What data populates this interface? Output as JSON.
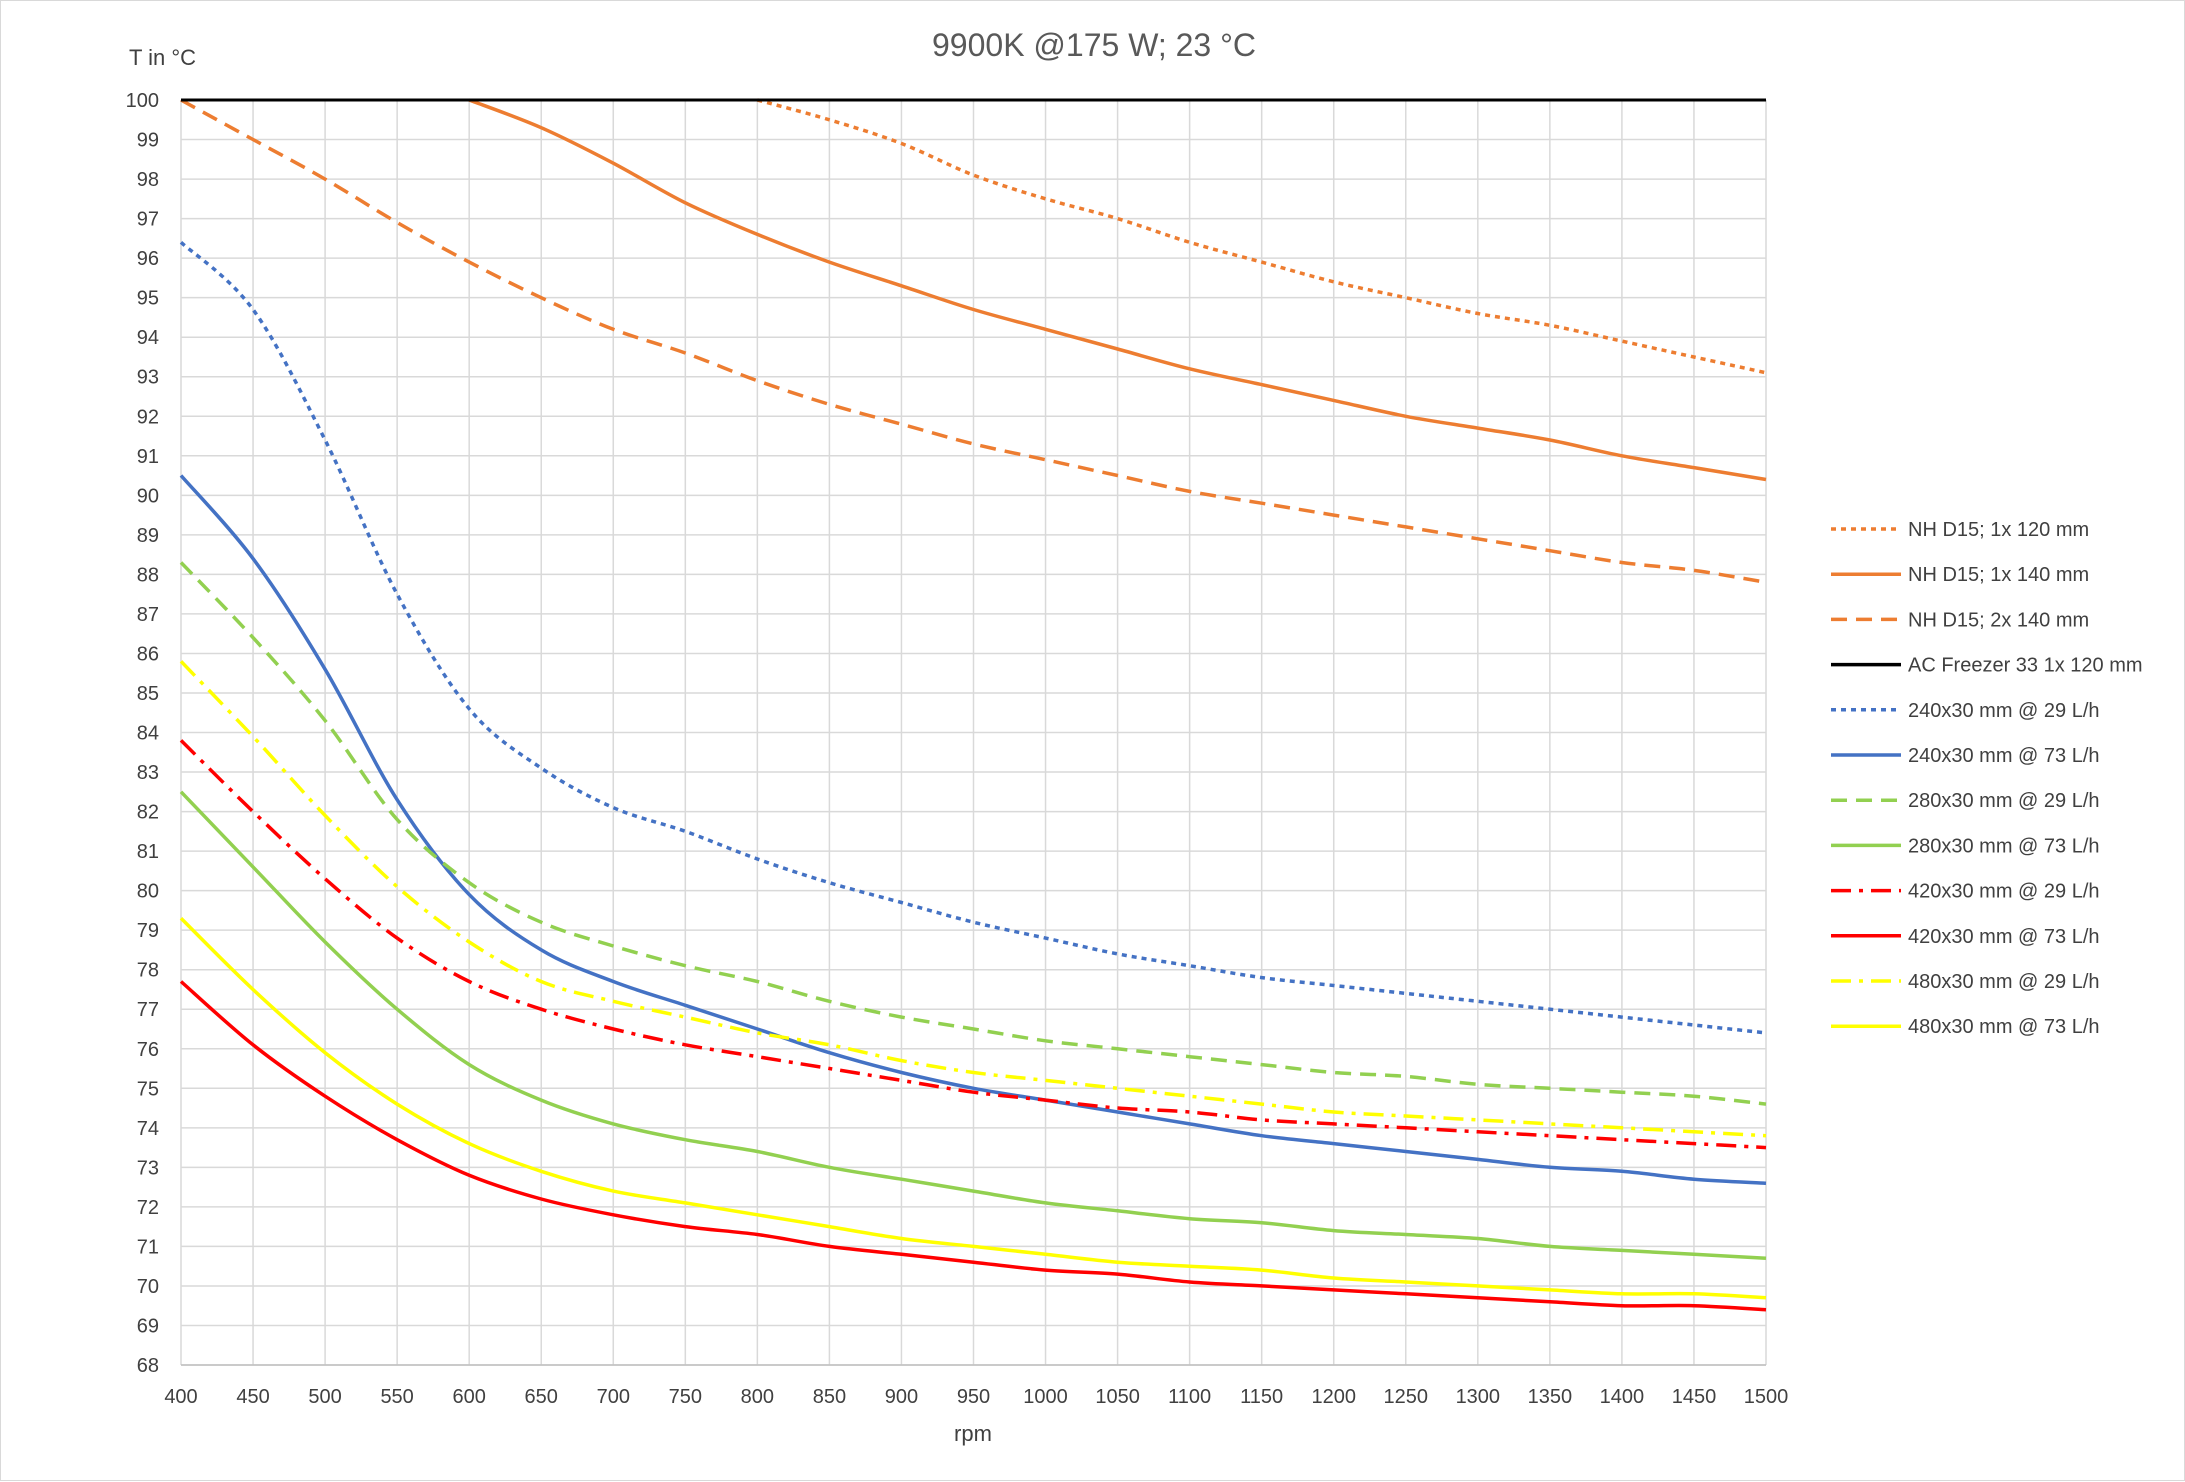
{
  "chart_data": {
    "type": "line",
    "title": "9900K @175 W; 23 °C",
    "xlabel": "rpm",
    "ylabel": "T in °C",
    "xlim": [
      400,
      1500
    ],
    "ylim": [
      68,
      100
    ],
    "x_ticks": [
      400,
      450,
      500,
      550,
      600,
      650,
      700,
      750,
      800,
      850,
      900,
      950,
      1000,
      1050,
      1100,
      1150,
      1200,
      1250,
      1300,
      1350,
      1400,
      1450,
      1500
    ],
    "y_ticks": [
      68,
      69,
      70,
      71,
      72,
      73,
      74,
      75,
      76,
      77,
      78,
      79,
      80,
      81,
      82,
      83,
      84,
      85,
      86,
      87,
      88,
      89,
      90,
      91,
      92,
      93,
      94,
      95,
      96,
      97,
      98,
      99,
      100
    ],
    "grid": true,
    "legend_position": "right",
    "x": [
      400,
      450,
      500,
      550,
      600,
      650,
      700,
      750,
      800,
      850,
      900,
      950,
      1000,
      1050,
      1100,
      1150,
      1200,
      1250,
      1300,
      1350,
      1400,
      1450,
      1500
    ],
    "series": [
      {
        "name": "NH D15; 1x 120 mm",
        "color": "#ED7D31",
        "dash": "dotted",
        "values": [
          null,
          null,
          null,
          null,
          null,
          null,
          null,
          null,
          100,
          99.5,
          98.9,
          98.1,
          97.5,
          97.0,
          96.4,
          95.9,
          95.4,
          95.0,
          94.6,
          94.3,
          93.9,
          93.5,
          93.1
        ]
      },
      {
        "name": "NH D15; 1x 140 mm",
        "color": "#ED7D31",
        "dash": "solid",
        "values": [
          null,
          null,
          null,
          null,
          100,
          99.3,
          98.4,
          97.4,
          96.6,
          95.9,
          95.3,
          94.7,
          94.2,
          93.7,
          93.2,
          92.8,
          92.4,
          92.0,
          91.7,
          91.4,
          91.0,
          90.7,
          90.4
        ]
      },
      {
        "name": "NH D15; 2x 140 mm",
        "color": "#ED7D31",
        "dash": "dashed",
        "values": [
          100,
          99.0,
          98.0,
          96.9,
          95.9,
          95.0,
          94.2,
          93.6,
          92.9,
          92.3,
          91.8,
          91.3,
          90.9,
          90.5,
          90.1,
          89.8,
          89.5,
          89.2,
          88.9,
          88.6,
          88.3,
          88.1,
          87.8
        ]
      },
      {
        "name": "AC Freezer 33 1x 120 mm",
        "color": "#000000",
        "dash": "solid",
        "values": [
          100,
          100,
          100,
          100,
          100,
          100,
          100,
          100,
          100,
          100,
          100,
          100,
          100,
          100,
          100,
          100,
          100,
          100,
          100,
          100,
          100,
          100,
          100
        ]
      },
      {
        "name": "240x30 mm @ 29 L/h",
        "color": "#4472C4",
        "dash": "dotted",
        "values": [
          96.4,
          94.7,
          91.4,
          87.5,
          84.6,
          83.1,
          82.1,
          81.5,
          80.8,
          80.2,
          79.7,
          79.2,
          78.8,
          78.4,
          78.1,
          77.8,
          77.6,
          77.4,
          77.2,
          77.0,
          76.8,
          76.6,
          76.4
        ]
      },
      {
        "name": "240x30 mm @ 73 L/h",
        "color": "#4472C4",
        "dash": "solid",
        "values": [
          90.5,
          88.4,
          85.6,
          82.3,
          79.9,
          78.5,
          77.7,
          77.1,
          76.5,
          75.9,
          75.4,
          75.0,
          74.7,
          74.4,
          74.1,
          73.8,
          73.6,
          73.4,
          73.2,
          73.0,
          72.9,
          72.7,
          72.6
        ]
      },
      {
        "name": "280x30 mm @ 29 L/h",
        "color": "#92D050",
        "dash": "dashed",
        "values": [
          88.3,
          86.4,
          84.3,
          81.8,
          80.2,
          79.2,
          78.6,
          78.1,
          77.7,
          77.2,
          76.8,
          76.5,
          76.2,
          76.0,
          75.8,
          75.6,
          75.4,
          75.3,
          75.1,
          75.0,
          74.9,
          74.8,
          74.6
        ]
      },
      {
        "name": "280x30 mm @ 73 L/h",
        "color": "#92D050",
        "dash": "solid",
        "values": [
          82.5,
          80.6,
          78.7,
          77.0,
          75.6,
          74.7,
          74.1,
          73.7,
          73.4,
          73.0,
          72.7,
          72.4,
          72.1,
          71.9,
          71.7,
          71.6,
          71.4,
          71.3,
          71.2,
          71.0,
          70.9,
          70.8,
          70.7
        ]
      },
      {
        "name": "420x30 mm @ 29 L/h",
        "color": "#FF0000",
        "dash": "dashdot",
        "values": [
          83.8,
          82.0,
          80.3,
          78.8,
          77.7,
          77.0,
          76.5,
          76.1,
          75.8,
          75.5,
          75.2,
          74.9,
          74.7,
          74.5,
          74.4,
          74.2,
          74.1,
          74.0,
          73.9,
          73.8,
          73.7,
          73.6,
          73.5
        ]
      },
      {
        "name": "420x30 mm @ 73 L/h",
        "color": "#FF0000",
        "dash": "solid",
        "values": [
          77.7,
          76.1,
          74.8,
          73.7,
          72.8,
          72.2,
          71.8,
          71.5,
          71.3,
          71.0,
          70.8,
          70.6,
          70.4,
          70.3,
          70.1,
          70.0,
          69.9,
          69.8,
          69.7,
          69.6,
          69.5,
          69.5,
          69.4
        ]
      },
      {
        "name": "480x30 mm @ 29 L/h",
        "color": "#FFFF00",
        "dash": "dashdot",
        "values": [
          85.8,
          83.9,
          81.9,
          80.1,
          78.7,
          77.7,
          77.2,
          76.8,
          76.4,
          76.1,
          75.7,
          75.4,
          75.2,
          75.0,
          74.8,
          74.6,
          74.4,
          74.3,
          74.2,
          74.1,
          74.0,
          73.9,
          73.8
        ]
      },
      {
        "name": "480x30 mm @ 73 L/h",
        "color": "#FFFF00",
        "dash": "solid",
        "values": [
          79.3,
          77.5,
          75.9,
          74.6,
          73.6,
          72.9,
          72.4,
          72.1,
          71.8,
          71.5,
          71.2,
          71.0,
          70.8,
          70.6,
          70.5,
          70.4,
          70.2,
          70.1,
          70.0,
          69.9,
          69.8,
          69.8,
          69.7
        ]
      }
    ]
  }
}
